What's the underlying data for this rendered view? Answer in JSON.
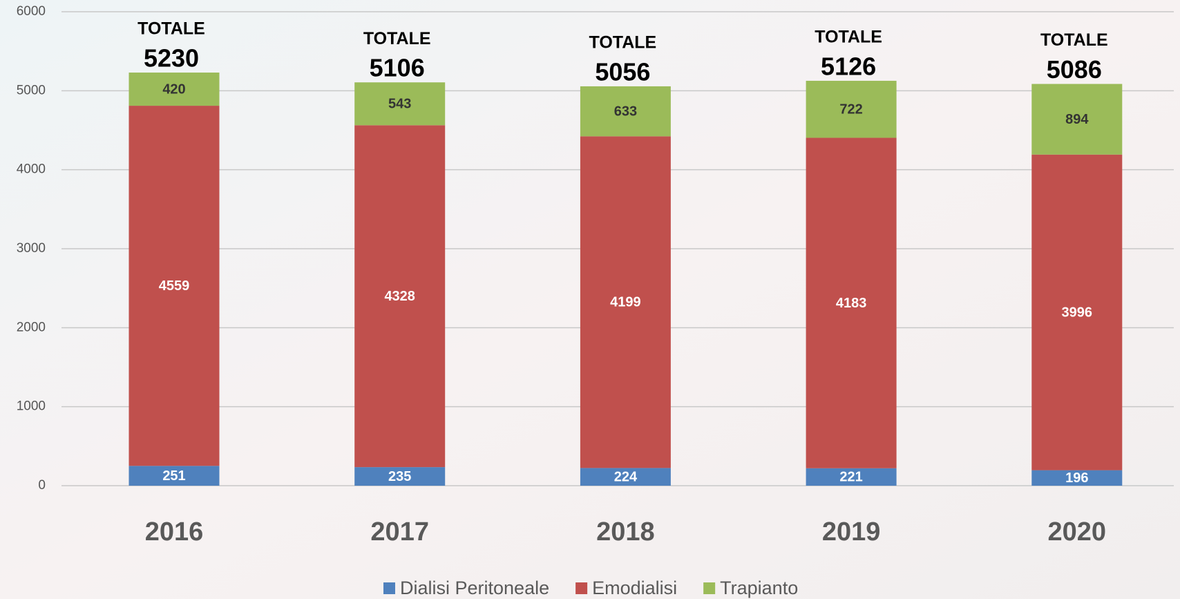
{
  "chart_data": {
    "type": "stacked_bar",
    "categories": [
      "2016",
      "2017",
      "2018",
      "2019",
      "2020"
    ],
    "series": [
      {
        "name": "Dialisi Peritoneale",
        "color": "#4f81bd",
        "values": [
          251,
          235,
          224,
          221,
          196
        ]
      },
      {
        "name": "Emodialisi",
        "color": "#c0504d",
        "values": [
          4559,
          4328,
          4199,
          4183,
          3996
        ]
      },
      {
        "name": "Trapianto",
        "color": "#9bbb59",
        "values": [
          420,
          543,
          633,
          722,
          894
        ]
      }
    ],
    "total_label": "TOTALE",
    "totals": [
      5230,
      5106,
      5056,
      5126,
      5086
    ],
    "ylim": [
      0,
      6000
    ],
    "yticks": [
      0,
      1000,
      2000,
      3000,
      4000,
      5000,
      6000
    ],
    "grid": true
  }
}
